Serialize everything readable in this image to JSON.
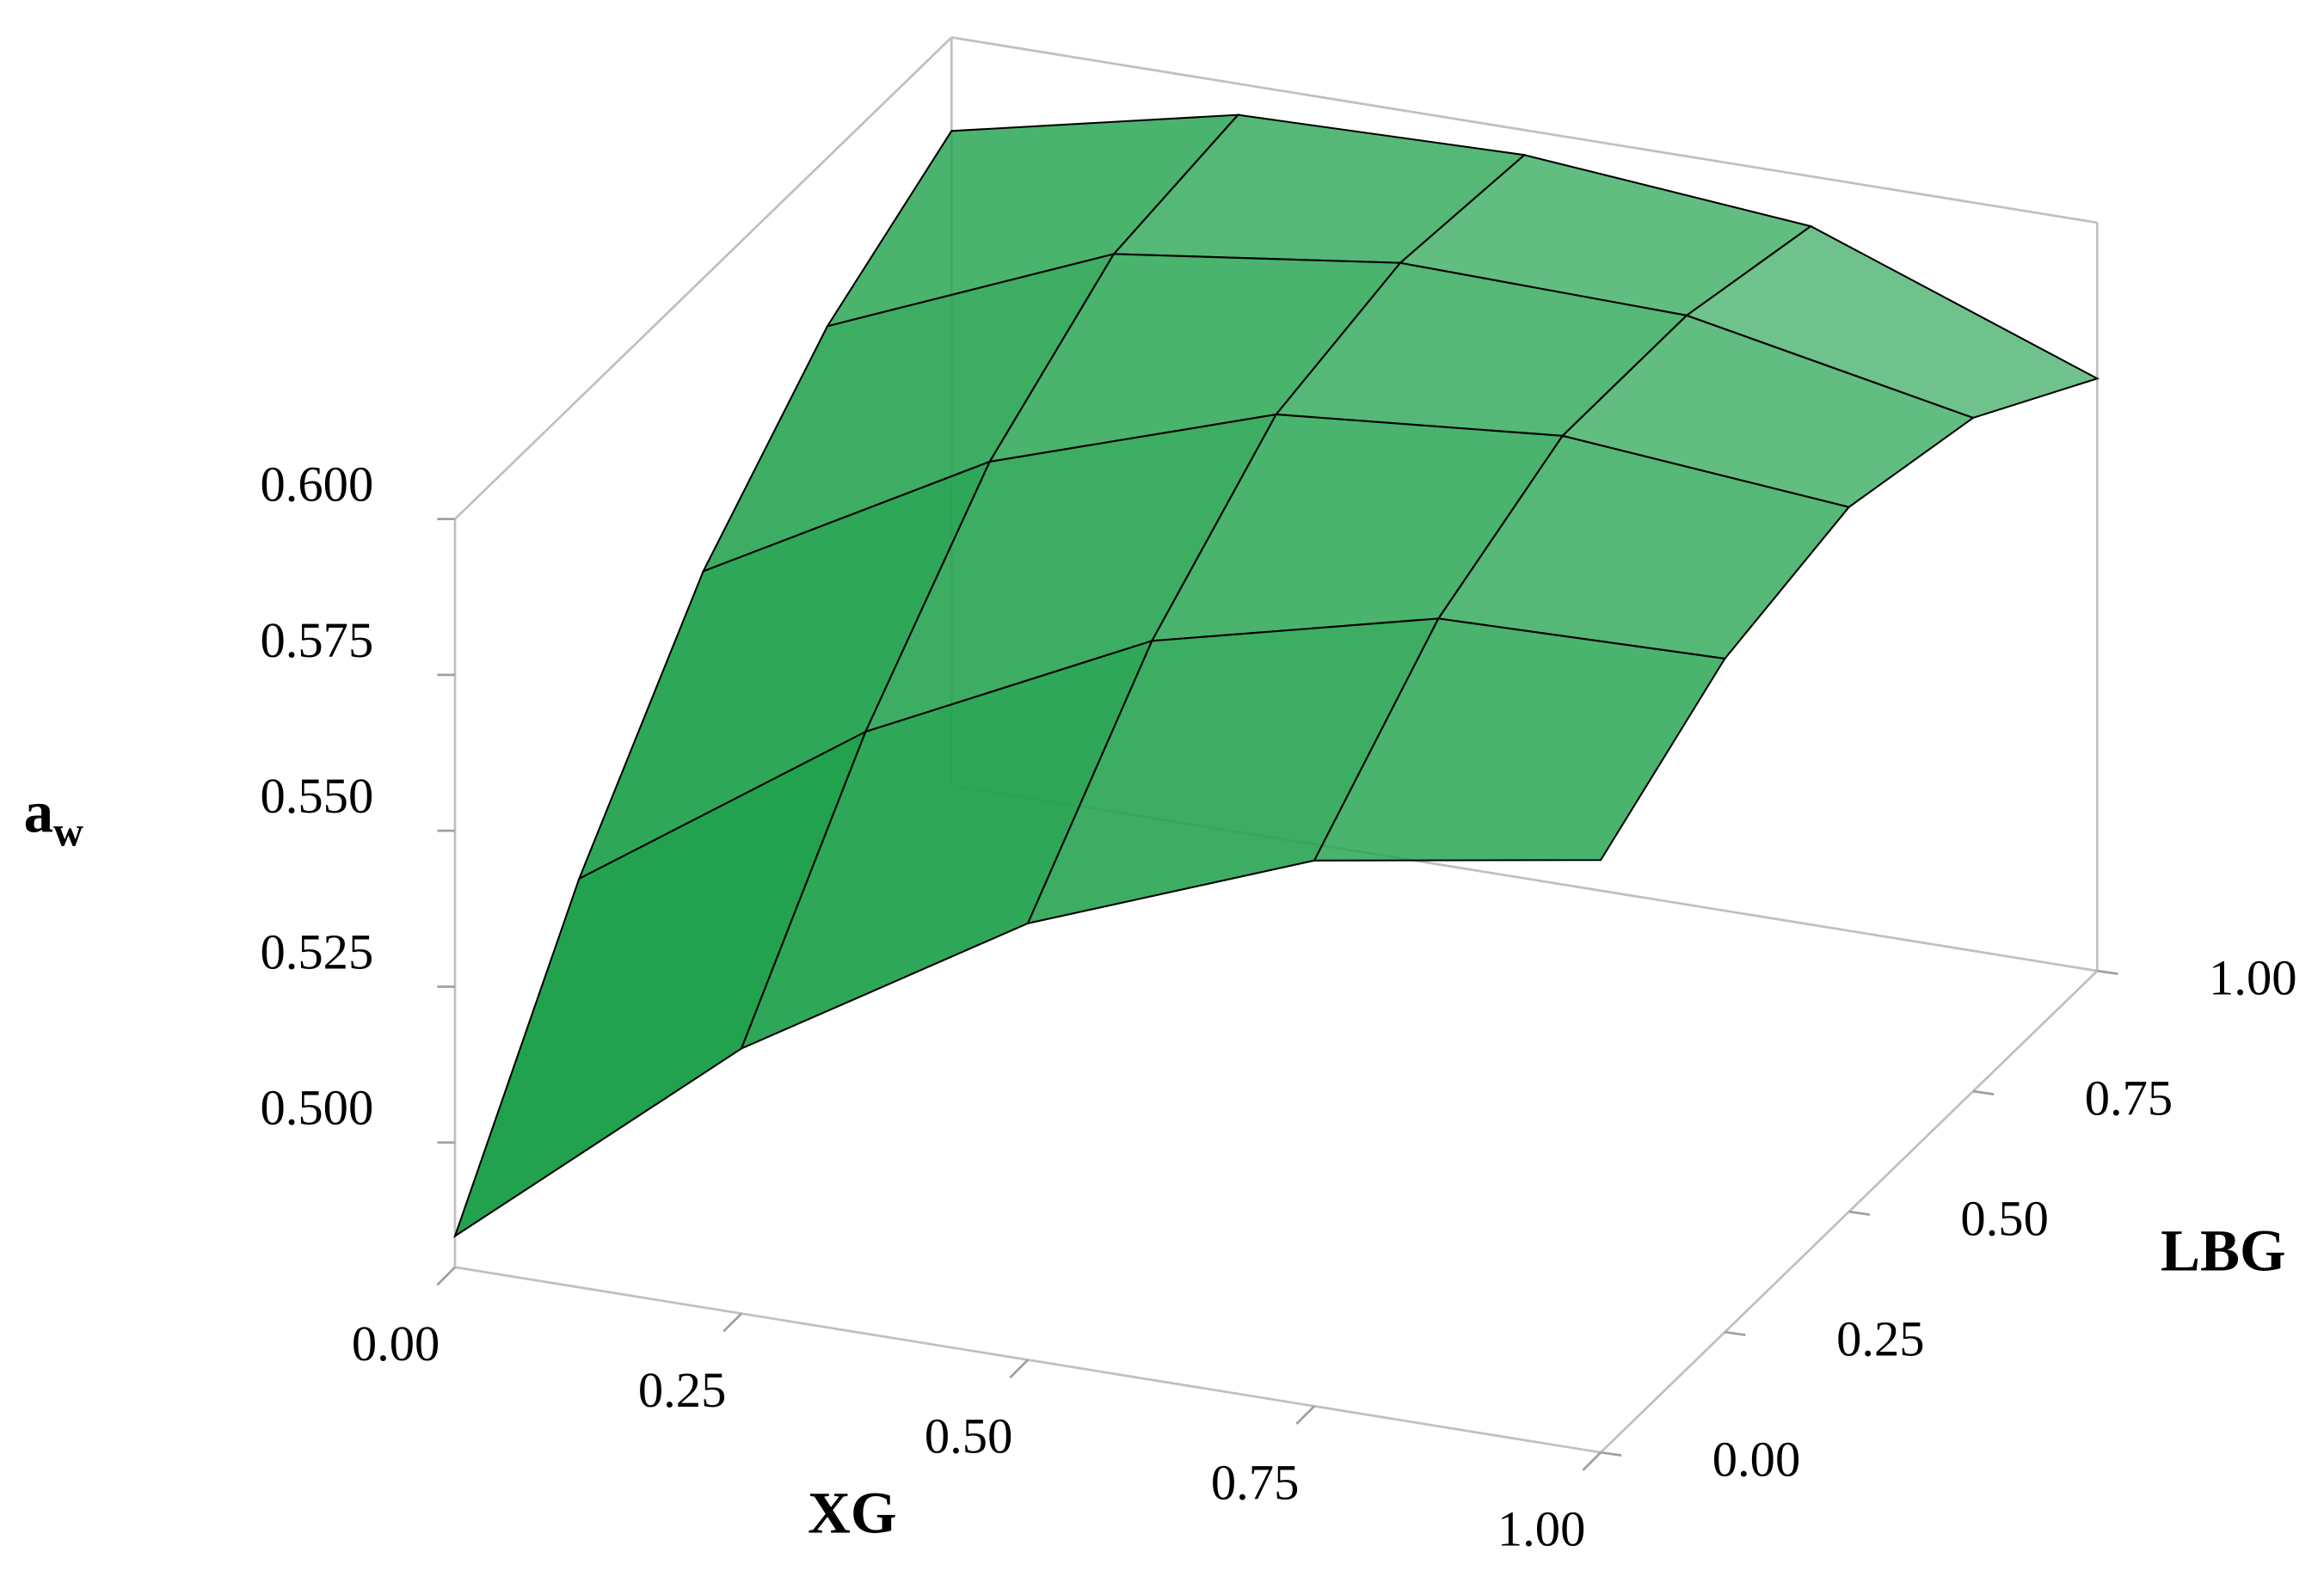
{
  "chart_data": {
    "type": "surface",
    "xlabel": "XG",
    "ylabel": "LBG",
    "zlabel": "a",
    "zlabel_subscript": "w",
    "color": "#22a24e",
    "x": [
      0,
      0.25,
      0.5,
      0.75,
      1
    ],
    "y": [
      0,
      0.25,
      0.5,
      0.75,
      1
    ],
    "z": [
      [
        0.485,
        0.5225,
        0.55,
        0.5675,
        0.575
      ],
      [
        0.523,
        0.554,
        0.576,
        0.587,
        0.588
      ],
      [
        0.553,
        0.578,
        0.593,
        0.597,
        0.593
      ],
      [
        0.573,
        0.592,
        0.598,
        0.597,
        0.588
      ],
      [
        0.585,
        0.595,
        0.596,
        0.592,
        0.575
      ]
    ],
    "xlim": [
      0,
      1
    ],
    "ylim": [
      0,
      1
    ],
    "zlim": [
      0.48,
      0.6
    ],
    "xticks": [
      {
        "value": 0,
        "label": "0.00"
      },
      {
        "value": 0.25,
        "label": "0.25"
      },
      {
        "value": 0.5,
        "label": "0.50"
      },
      {
        "value": 0.75,
        "label": "0.75"
      },
      {
        "value": 1,
        "label": "1.00"
      }
    ],
    "yticks": [
      {
        "value": 0,
        "label": "0.00"
      },
      {
        "value": 0.25,
        "label": "0.25"
      },
      {
        "value": 0.5,
        "label": "0.50"
      },
      {
        "value": 0.75,
        "label": "0.75"
      },
      {
        "value": 1,
        "label": "1.00"
      }
    ],
    "zticks": [
      {
        "value": 0.5,
        "label": "0.500"
      },
      {
        "value": 0.525,
        "label": "0.525"
      },
      {
        "value": 0.55,
        "label": "0.550"
      },
      {
        "value": 0.575,
        "label": "0.575"
      },
      {
        "value": 0.6,
        "label": "0.600"
      }
    ]
  }
}
